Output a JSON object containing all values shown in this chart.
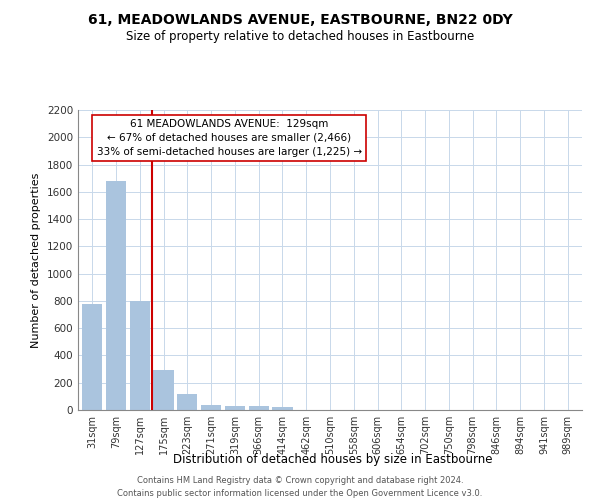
{
  "title": "61, MEADOWLANDS AVENUE, EASTBOURNE, BN22 0DY",
  "subtitle": "Size of property relative to detached houses in Eastbourne",
  "xlabel": "Distribution of detached houses by size in Eastbourne",
  "ylabel": "Number of detached properties",
  "bar_labels": [
    "31sqm",
    "79sqm",
    "127sqm",
    "175sqm",
    "223sqm",
    "271sqm",
    "319sqm",
    "366sqm",
    "414sqm",
    "462sqm",
    "510sqm",
    "558sqm",
    "606sqm",
    "654sqm",
    "702sqm",
    "750sqm",
    "798sqm",
    "846sqm",
    "894sqm",
    "941sqm",
    "989sqm"
  ],
  "bar_values": [
    775,
    1680,
    800,
    295,
    115,
    40,
    30,
    30,
    20,
    0,
    0,
    0,
    0,
    0,
    0,
    0,
    0,
    0,
    0,
    0,
    0
  ],
  "bar_color": "#aac4de",
  "vline_x": 2.5,
  "vline_color": "#cc0000",
  "annotation_title": "61 MEADOWLANDS AVENUE:  129sqm",
  "annotation_line1": "← 67% of detached houses are smaller (2,466)",
  "annotation_line2": "33% of semi-detached houses are larger (1,225) →",
  "annotation_box_color": "#ffffff",
  "annotation_box_edge": "#cc0000",
  "ylim": [
    0,
    2200
  ],
  "yticks": [
    0,
    200,
    400,
    600,
    800,
    1000,
    1200,
    1400,
    1600,
    1800,
    2000,
    2200
  ],
  "background_color": "#ffffff",
  "grid_color": "#c8d8ea",
  "footer_line1": "Contains HM Land Registry data © Crown copyright and database right 2024.",
  "footer_line2": "Contains public sector information licensed under the Open Government Licence v3.0."
}
